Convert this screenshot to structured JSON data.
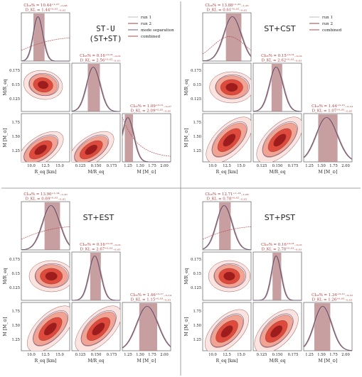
{
  "colors": {
    "run1": "#c9b7b7",
    "run2": "#8a4a4a",
    "mode_separation": "#6a5d86",
    "combined": "#b34a4a",
    "band": "#b57f82",
    "contour_fill": [
      "#fbe3df",
      "#f2a494",
      "#de4b3c",
      "#9e1c1c"
    ],
    "frame": "#444444",
    "text_red": "#b23a3a"
  },
  "legend_labels": [
    "run 1",
    "run 2",
    "mode separation",
    "combined"
  ],
  "axis_labels": {
    "req": "R_eq [km]",
    "mr": "M/R_eq",
    "m": "M [M_⊙]"
  },
  "ticks": {
    "req": [
      "10.0",
      "12.5",
      "15.0"
    ],
    "mr": [
      "0.125",
      "0.150",
      "0.175"
    ],
    "m": [
      "1.25",
      "1.50",
      "1.75",
      "2.00"
    ],
    "m_rows": [
      "1.25",
      "1.50",
      "1.75"
    ],
    "mr_rows": [
      "0.125",
      "0.15",
      "0.175"
    ]
  },
  "panels": [
    {
      "name": "ST-U",
      "title_lines": [
        "ST-U",
        "(ST+ST)"
      ],
      "legend_items": [
        "run 1",
        "run 2",
        "mode separation",
        "combined"
      ],
      "stats": [
        {
          "ci": "CI₆₈% = 10.44⁺¹·⁰⁷₋₀.₉₈",
          "dkl": "D_KL = 1.44⁺⁰·⁰²₋₀.₀₂"
        },
        {
          "ci": "CI₆₈% = 0.16⁺⁰·⁰¹₋₀.₀₁",
          "dkl": "D_KL = 2.56⁺⁰·⁰²₋₀.₀₁"
        },
        {
          "ci": "CI₆₈% = 1.09⁺⁰·¹¹₋₀.₀₇",
          "dkl": "D_KL = 2.09⁺⁰·⁰⁵₋₀.₀₅"
        }
      ]
    },
    {
      "name": "ST+CST",
      "title_lines": [
        "ST+CST"
      ],
      "legend_items": [
        "run 1",
        "run 2",
        "combined"
      ],
      "stats": [
        {
          "ci": "CI₆₈% = 13.88⁺¹·²⁰₋₁.₂₆",
          "dkl": "D_KL = 0.61⁺⁰·⁰²₋₀.₀₂"
        },
        {
          "ci": "CI₆₈% = 0.15⁺⁰·⁰¹₋₀.₀₁",
          "dkl": "D_KL = 2.62⁺⁰·⁰³₋₀.₀₃"
        },
        {
          "ci": "CI₆₈% = 1.44⁺⁰·¹⁵₋₀.₁₄",
          "dkl": "D_KL = 1.07⁺⁰·⁰⁵₋₀.₀₅"
        }
      ]
    },
    {
      "name": "ST+EST",
      "title_lines": [
        "ST+EST"
      ],
      "legend_items": [],
      "stats": [
        {
          "ci": "CI₆₈% = 13.90⁺¹·¹⁴₋₁.₂₀",
          "dkl": "D_KL = 0.69⁺⁰·⁰²₋₀.₀₂"
        },
        {
          "ci": "CI₆₈% = 0.16⁺⁰·⁰¹₋₀.₀₁",
          "dkl": "D_KL = 2.67⁺⁰·⁰³₋₀.₀₃"
        },
        {
          "ci": "CI₆₈% = 1.46⁺⁰·¹⁷₋₀.₁₄",
          "dkl": "D_KL = 1.15⁺⁰·⁰³₋₀.₀₃"
        }
      ]
    },
    {
      "name": "ST+PST",
      "title_lines": [
        "ST+PST"
      ],
      "legend_items": [],
      "stats": [
        {
          "ci": "CI₆₈% = 12.71⁺¹·¹⁴₋₁.₀₈",
          "dkl": "D_KL = 0.78⁺⁰·⁰²₋₀.₀₂"
        },
        {
          "ci": "CI₆₈% = 0.16⁺⁰·⁰¹₋₀.₀₁",
          "dkl": "D_KL = 2.78⁺⁰·⁰³₋₀.₀₃"
        },
        {
          "ci": "CI₆₈% = 1.34⁺⁰·¹²₋₀.₁₀",
          "dkl": "D_KL = 1.26⁺⁰·⁰³₋₀.₀₃"
        }
      ]
    }
  ]
}
